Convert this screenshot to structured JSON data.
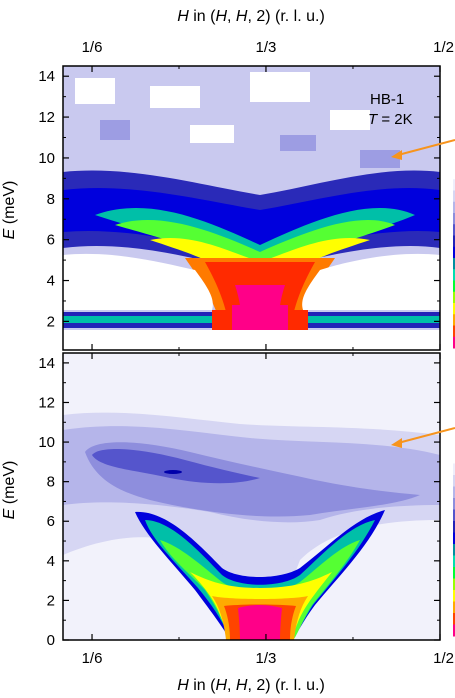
{
  "chart_data": [
    {
      "type": "heatmap",
      "panel": "top",
      "title": "",
      "xlabel": {
        "pre": "",
        "var": "H",
        "mid": " in (",
        "v1": "H",
        "sep": ", ",
        "v2": "H",
        "post": ", 2) (r. l. u.)"
      },
      "ylabel": {
        "var": "E",
        "unit": " (meV)"
      },
      "xlim": [
        0.1389,
        0.5
      ],
      "ylim": [
        0.6,
        14.5
      ],
      "x_ticks": [
        {
          "value": 0.1667,
          "label": "1/6"
        },
        {
          "value": 0.3333,
          "label": "1/3"
        },
        {
          "value": 0.5,
          "label": "1/2"
        }
      ],
      "y_ticks": [
        2,
        4,
        6,
        8,
        10,
        12,
        14
      ],
      "annotations": {
        "instrument": "HB-1",
        "temp_var": "T",
        "temp_rest": " = 2K"
      },
      "dispersion": {
        "h": [
          0.14,
          0.2,
          0.25,
          0.3,
          0.3333,
          0.37,
          0.42,
          0.46,
          0.5
        ],
        "e": [
          6.8,
          6.2,
          5.2,
          3.6,
          3.0,
          3.6,
          5.2,
          6.2,
          6.8
        ]
      },
      "flat_mode_energy": 1.4,
      "arrow_at_energy": 10
    },
    {
      "type": "heatmap",
      "panel": "bottom",
      "title": "",
      "xlabel": {
        "pre": "",
        "var": "H",
        "mid": " in (",
        "v1": "H",
        "sep": ", ",
        "v2": "H",
        "post": ", 2) (r. l. u.)"
      },
      "ylabel": {
        "var": "E",
        "unit": " (meV)"
      },
      "xlim": [
        0.1389,
        0.5
      ],
      "ylim": [
        0,
        14.5
      ],
      "x_ticks": [
        {
          "value": 0.1667,
          "label": "1/6"
        },
        {
          "value": 0.3333,
          "label": "1/3"
        },
        {
          "value": 0.5,
          "label": "1/2"
        }
      ],
      "y_ticks": [
        0,
        2,
        4,
        6,
        8,
        10,
        12,
        14
      ],
      "dispersion": {
        "h": [
          0.2,
          0.25,
          0.29,
          0.3333,
          0.38,
          0.42,
          0.46
        ],
        "e": [
          6.2,
          4.0,
          2.6,
          2.2,
          2.6,
          4.0,
          6.2
        ]
      },
      "arrow_at_energy": 10
    }
  ],
  "colors": {
    "accent_arrow": "#f7941d",
    "scale": [
      "#ffffff",
      "#eeeefb",
      "#d6d6f3",
      "#b5b5ea",
      "#8e8edd",
      "#5555cc",
      "#2222b8",
      "#0000dd",
      "#008fa0",
      "#00e0b0",
      "#00ff33",
      "#99ff00",
      "#ffff00",
      "#ffaa00",
      "#ff4400",
      "#ff0088"
    ]
  }
}
